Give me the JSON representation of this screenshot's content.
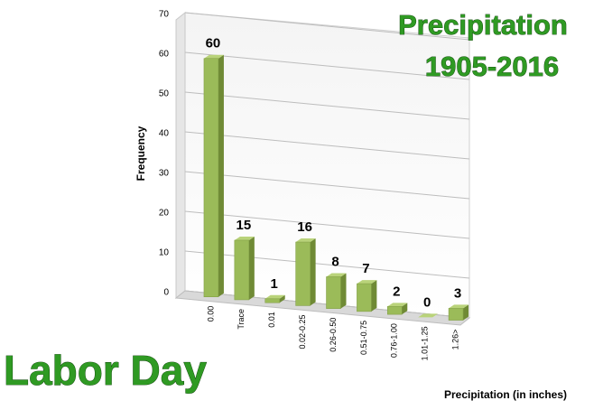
{
  "chart_data": {
    "type": "bar3d",
    "title": "Precipitation",
    "subtitle": "1905-2016",
    "annotation": "Labor Day",
    "x_label": "Precipitation (in inches)",
    "y_label": "Frequency",
    "categories": [
      "0.00",
      "Trace",
      "0.01",
      "0.02-0.25",
      "0.26-0.50",
      "0.51-0.75",
      "0.76-1.00",
      "1.01-1.25",
      "1.26>"
    ],
    "values": [
      60,
      15,
      1,
      16,
      8,
      7,
      2,
      0,
      3
    ],
    "color": "#9bbb59",
    "ylim": [
      0,
      70
    ],
    "yticks": [
      0,
      10,
      20,
      30,
      40,
      50,
      60,
      70
    ],
    "grid": true
  }
}
